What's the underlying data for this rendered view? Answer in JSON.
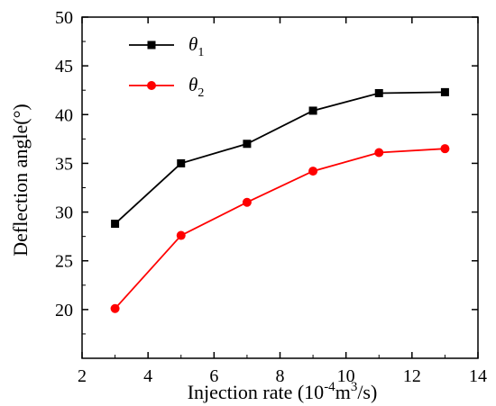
{
  "chart_data": {
    "type": "line",
    "title": "",
    "xlabel": {
      "prefix": "Injection rate (10",
      "exp1": "-4",
      "mid": "m",
      "exp2": "3",
      "suffix": "/s)"
    },
    "ylabel": "Deflection angle(°)",
    "xlim": [
      2,
      14
    ],
    "ylim": [
      15,
      50
    ],
    "xticks": [
      2,
      4,
      6,
      8,
      10,
      12,
      14
    ],
    "yticks": [
      20,
      25,
      30,
      35,
      40,
      45,
      50
    ],
    "x": [
      3,
      5,
      7,
      9,
      11,
      13
    ],
    "grid": false,
    "legend_position": "top-left",
    "series": [
      {
        "name": "θ1",
        "symbol": "θ",
        "subscript": "1",
        "color": "#000000",
        "marker": "square",
        "values": [
          28.8,
          35.0,
          37.0,
          40.4,
          42.2,
          42.3
        ]
      },
      {
        "name": "θ2",
        "symbol": "θ",
        "subscript": "2",
        "color": "#ff0000",
        "marker": "circle",
        "values": [
          20.1,
          27.6,
          31.0,
          34.2,
          36.1,
          36.5
        ]
      }
    ]
  }
}
